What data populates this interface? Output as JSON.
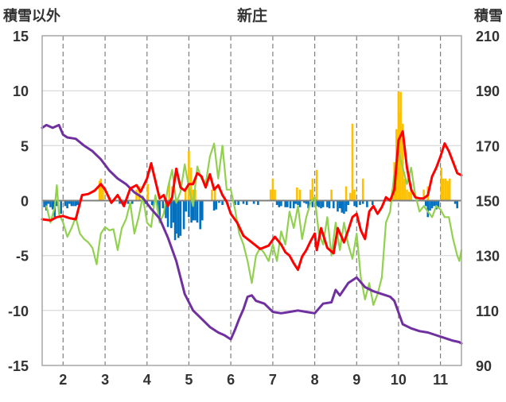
{
  "chart_data": {
    "type": "combo",
    "title": "新庄",
    "left_axis": {
      "label": "積雪以外",
      "ylim": [
        -15,
        15
      ],
      "ticks": [
        -15,
        -10,
        -5,
        0,
        5,
        10,
        15
      ]
    },
    "right_axis": {
      "label": "積雪",
      "ylim": [
        90,
        210
      ],
      "ticks": [
        90,
        110,
        130,
        150,
        170,
        190,
        210
      ]
    },
    "x_axis": {
      "xlim": [
        1.5,
        11.5
      ],
      "ticks": [
        2,
        3,
        4,
        5,
        6,
        7,
        8,
        9,
        10,
        11
      ],
      "grid": "dashed"
    },
    "colors": {
      "red": "#ff0000",
      "green": "#92d050",
      "purple": "#7030a0",
      "pos_bar": "#ffc000",
      "neg_bar": "#0070c0"
    },
    "series": [
      {
        "type": "line",
        "color": "#ff0000",
        "axis": "left",
        "x": [
          1.5,
          1.7,
          1.85,
          2.0,
          2.15,
          2.3,
          2.45,
          2.6,
          2.75,
          2.9,
          3.0,
          3.15,
          3.3,
          3.45,
          3.6,
          3.75,
          3.85,
          4.0,
          4.1,
          4.2,
          4.3,
          4.4,
          4.5,
          4.6,
          4.7,
          4.8,
          4.9,
          5.0,
          5.1,
          5.2,
          5.3,
          5.4,
          5.5,
          5.6,
          5.7,
          5.8,
          5.9,
          6.0,
          6.15,
          6.3,
          6.5,
          6.7,
          6.9,
          7.05,
          7.2,
          7.3,
          7.4,
          7.5,
          7.6,
          7.7,
          7.8,
          7.9,
          8.0,
          8.05,
          8.15,
          8.3,
          8.45,
          8.55,
          8.7,
          8.8,
          8.9,
          9.0,
          9.1,
          9.2,
          9.3,
          9.4,
          9.5,
          9.6,
          9.7,
          9.8,
          9.9,
          10.0,
          10.1,
          10.2,
          10.3,
          10.4,
          10.5,
          10.6,
          10.7,
          10.8,
          10.9,
          11.0,
          11.1,
          11.2,
          11.3,
          11.4,
          11.5
        ],
        "y": [
          -1.7,
          -1.8,
          -1.5,
          -1.4,
          -1.6,
          -1.7,
          0.5,
          0.6,
          0.9,
          1.5,
          1.0,
          -0.2,
          0.5,
          -0.5,
          1.1,
          1.4,
          0.8,
          2.0,
          3.4,
          1.8,
          0.2,
          0.5,
          -0.5,
          0.3,
          2.9,
          1.2,
          0.9,
          1.5,
          1.5,
          2.5,
          2.2,
          1.2,
          2.4,
          1.0,
          1.4,
          0.5,
          -0.1,
          -1.2,
          -2.0,
          -3.2,
          -3.8,
          -4.4,
          -4.1,
          -3.3,
          -4.0,
          -4.7,
          -5.0,
          -5.7,
          -6.3,
          -5.1,
          -4.5,
          -3.7,
          -3.0,
          -4.5,
          -2.5,
          -4.3,
          -4.8,
          -2.5,
          -3.8,
          -2.7,
          -1.5,
          -1.2,
          -2.7,
          -3.5,
          -1.0,
          -0.5,
          -1.2,
          -0.6,
          0.3,
          0.0,
          1.0,
          5.5,
          6.3,
          3.0,
          1.0,
          0.3,
          0.2,
          0.2,
          0.5,
          2.2,
          3.0,
          4.0,
          5.2,
          4.5,
          3.5,
          2.5,
          2.3
        ]
      },
      {
        "type": "line",
        "color": "#92d050",
        "axis": "left",
        "x": [
          1.6,
          1.7,
          1.8,
          1.85,
          1.9,
          2.0,
          2.1,
          2.2,
          2.3,
          2.4,
          2.5,
          2.6,
          2.7,
          2.8,
          2.85,
          2.9,
          3.0,
          3.1,
          3.2,
          3.3,
          3.4,
          3.5,
          3.6,
          3.7,
          3.8,
          3.9,
          4.0,
          4.1,
          4.2,
          4.3,
          4.4,
          4.5,
          4.6,
          4.7,
          4.8,
          4.9,
          5.0,
          5.1,
          5.2,
          5.3,
          5.4,
          5.5,
          5.6,
          5.7,
          5.8,
          5.9,
          6.0,
          6.1,
          6.2,
          6.3,
          6.4,
          6.5,
          6.6,
          6.7,
          6.8,
          6.9,
          7.0,
          7.1,
          7.2,
          7.3,
          7.4,
          7.5,
          7.6,
          7.7,
          7.8,
          7.9,
          8.0,
          8.1,
          8.2,
          8.3,
          8.4,
          8.5,
          8.6,
          8.7,
          8.8,
          8.9,
          9.0,
          9.1,
          9.2,
          9.3,
          9.4,
          9.5,
          9.6,
          9.7,
          9.8,
          9.9,
          10.0,
          10.1,
          10.2,
          10.3,
          10.4,
          10.5,
          10.6,
          10.7,
          10.8,
          10.9,
          11.0,
          11.1,
          11.2,
          11.3,
          11.4,
          11.45,
          11.5
        ],
        "y": [
          -0.5,
          -2.0,
          -0.6,
          1.4,
          -1.2,
          -2.0,
          -3.3,
          -2.5,
          -1.5,
          -3.0,
          -3.5,
          -3.8,
          -4.3,
          -5.8,
          -4.3,
          -3.0,
          -2.4,
          -2.7,
          -2.6,
          -4.5,
          -2.5,
          -1.7,
          -0.2,
          -3.0,
          -1.5,
          0.4,
          -2.0,
          -2.4,
          0.5,
          -2.0,
          -1.2,
          1.2,
          2.8,
          -0.2,
          0.8,
          3.3,
          1.2,
          -0.5,
          3.1,
          2.0,
          1.5,
          4.0,
          5.2,
          2.0,
          5.0,
          1.0,
          1.0,
          -0.8,
          -3.0,
          -4.0,
          -5.5,
          -7.5,
          -5.0,
          -4.3,
          -4.8,
          -5.5,
          -4.0,
          -5.5,
          -2.8,
          -4.0,
          -1.0,
          -2.5,
          -0.5,
          -3.5,
          -1.5,
          -0.2,
          0.3,
          -3.0,
          -4.0,
          -1.5,
          -5.0,
          -2.0,
          -4.5,
          -2.0,
          -4.0,
          -5.3,
          -3.0,
          -7.0,
          -9.0,
          -7.5,
          -9.5,
          -8.5,
          -7.0,
          -2.0,
          -1.0,
          2.5,
          4.5,
          3.0,
          1.5,
          3.0,
          0.5,
          -1.0,
          -0.5,
          -1.0,
          -1.5,
          -0.5,
          -0.8,
          -1.5,
          -1.5,
          -3.5,
          -5.0,
          -5.5,
          -4.5
        ]
      },
      {
        "type": "line",
        "color": "#7030a0",
        "axis": "right",
        "x": [
          1.5,
          1.6,
          1.75,
          1.9,
          2.0,
          2.1,
          2.3,
          2.5,
          2.7,
          2.9,
          3.1,
          3.3,
          3.5,
          3.7,
          3.9,
          4.1,
          4.3,
          4.5,
          4.7,
          4.9,
          5.1,
          5.3,
          5.5,
          5.7,
          5.85,
          6.0,
          6.1,
          6.2,
          6.3,
          6.4,
          6.5,
          6.6,
          6.8,
          7.0,
          7.2,
          7.4,
          7.6,
          7.8,
          8.0,
          8.2,
          8.4,
          8.5,
          8.6,
          8.8,
          9.0,
          9.2,
          9.4,
          9.6,
          9.8,
          9.9,
          10.1,
          10.3,
          10.5,
          10.7,
          10.9,
          11.1,
          11.3,
          11.45,
          11.5
        ],
        "y": [
          176.5,
          177.5,
          176.5,
          177.5,
          174.0,
          173.0,
          172.5,
          170.0,
          168.0,
          165.0,
          161.0,
          158.0,
          156.0,
          153.0,
          151.0,
          147.0,
          143.5,
          136.5,
          128.0,
          116.0,
          110.0,
          107.0,
          104.0,
          102.0,
          101.0,
          99.5,
          103.0,
          107.0,
          110.5,
          115.0,
          115.5,
          113.5,
          112.5,
          109.5,
          109.0,
          109.5,
          110.0,
          109.5,
          109.0,
          112.5,
          113.0,
          117.5,
          115.5,
          120.0,
          122.0,
          118.5,
          117.0,
          116.0,
          115.0,
          113.5,
          105.0,
          103.5,
          102.5,
          102.0,
          101.0,
          100.0,
          99.0,
          98.5,
          98.0
        ]
      },
      {
        "type": "bar",
        "color": "#ffc000",
        "axis": "left",
        "x": [
          2.87,
          2.9,
          2.95,
          3.75,
          3.82,
          4.02,
          4.53,
          4.6,
          4.92,
          5.0,
          5.05,
          5.1,
          5.15,
          5.55,
          5.62,
          6.95,
          7.0,
          7.05,
          7.58,
          7.65,
          7.9,
          7.95,
          8.05,
          8.4,
          8.75,
          8.85,
          8.9,
          8.95,
          9.15,
          9.85,
          9.9,
          9.95,
          10.0,
          10.02,
          10.05,
          10.1,
          10.15,
          10.2,
          10.25,
          10.3,
          10.6,
          10.7,
          11.02,
          11.07,
          11.12,
          11.17,
          11.22
        ],
        "y": [
          1.8,
          2.0,
          1.2,
          1.0,
          1.3,
          1.5,
          1.7,
          1.3,
          1.0,
          4.5,
          3.0,
          1.0,
          1.0,
          1.0,
          1.0,
          1.0,
          2.0,
          1.0,
          1.2,
          1.0,
          1.0,
          2.0,
          2.8,
          1.0,
          1.3,
          0.7,
          7.0,
          1.0,
          2.0,
          1.0,
          3.5,
          6.5,
          9.9,
          8.0,
          9.9,
          7.0,
          2.0,
          1.0,
          0.8,
          1.5,
          1.0,
          1.3,
          3.0,
          2.0,
          2.0,
          1.8,
          2.0
        ]
      },
      {
        "type": "bar",
        "color": "#0070c0",
        "axis": "left",
        "x": [
          1.55,
          1.6,
          1.65,
          1.7,
          1.75,
          1.8,
          1.85,
          1.95,
          2.05,
          2.1,
          2.15,
          2.2,
          2.25,
          2.3,
          2.35,
          3.15,
          3.35,
          3.45,
          3.55,
          3.65,
          3.95,
          4.0,
          4.12,
          4.15,
          4.25,
          4.3,
          4.38,
          4.45,
          4.5,
          4.58,
          4.63,
          4.67,
          4.7,
          4.75,
          4.8,
          4.88,
          4.93,
          5.0,
          5.06,
          5.1,
          5.15,
          5.2,
          5.27,
          5.32,
          5.6,
          5.65,
          5.72,
          5.8,
          6.1,
          6.18,
          6.3,
          6.38,
          6.55,
          6.65,
          7.1,
          7.15,
          7.2,
          7.3,
          7.35,
          7.42,
          7.5,
          7.55,
          7.6,
          7.65,
          7.75,
          7.8,
          7.85,
          7.95,
          8.05,
          8.1,
          8.15,
          8.2,
          8.3,
          8.35,
          8.45,
          8.55,
          8.6,
          8.65,
          8.7,
          8.75,
          8.8,
          8.95,
          9.0,
          9.08,
          9.15,
          9.25,
          9.38,
          10.65,
          10.7,
          10.75,
          10.8,
          10.85,
          10.9,
          10.95,
          11.35,
          11.4
        ],
        "y": [
          -0.6,
          -0.9,
          -0.3,
          -0.6,
          -0.8,
          -1.5,
          -0.5,
          -1.2,
          -0.5,
          -0.7,
          -0.3,
          -0.5,
          -0.5,
          -0.5,
          -0.4,
          -0.2,
          -0.3,
          -0.3,
          -0.3,
          -0.3,
          -0.3,
          -0.3,
          -0.4,
          -0.5,
          -0.8,
          -1.5,
          -0.7,
          -1.6,
          -2.4,
          -2.5,
          -2.0,
          -3.6,
          -3.0,
          -3.4,
          -3.2,
          -2.6,
          -1.0,
          -1.5,
          -2.0,
          -1.8,
          -1.8,
          -2.0,
          -2.6,
          -1.8,
          -0.9,
          -0.8,
          -0.2,
          -0.4,
          -0.4,
          -0.4,
          -0.3,
          -0.4,
          -0.3,
          -0.4,
          -0.4,
          -0.6,
          -0.5,
          -0.6,
          -0.6,
          -0.7,
          -0.7,
          -0.3,
          -0.4,
          -0.6,
          -0.2,
          -0.3,
          -0.7,
          -0.6,
          -0.5,
          -0.6,
          -0.7,
          -0.6,
          -0.6,
          -0.7,
          -0.7,
          -1.0,
          -0.7,
          -1.1,
          -1.2,
          -1.0,
          -0.4,
          -0.5,
          -0.6,
          -0.4,
          -0.3,
          -0.6,
          -0.4,
          -0.5,
          -1.5,
          -0.9,
          -0.7,
          -0.5,
          -0.8,
          -0.7,
          -0.3,
          -0.7
        ]
      }
    ]
  }
}
